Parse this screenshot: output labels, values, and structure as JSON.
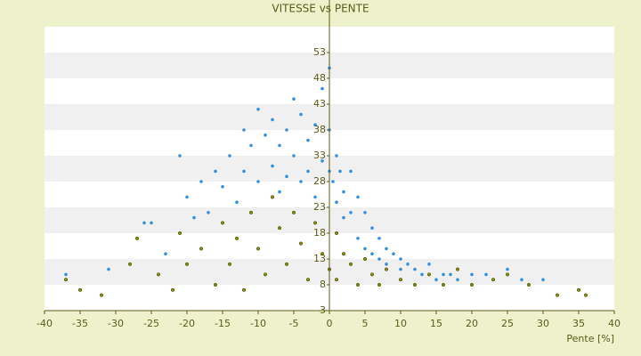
{
  "chart_data": {
    "type": "scatter",
    "title": "VITESSE vs PENTE",
    "x_label": "Pente [%]",
    "xlim": [
      -40,
      40
    ],
    "xticks": [
      -40,
      -35,
      -30,
      -25,
      -20,
      -15,
      -10,
      -5,
      0,
      5,
      10,
      15,
      20,
      25,
      30,
      35,
      40
    ],
    "ylim": [
      3,
      58
    ],
    "yticks": [
      3,
      8,
      13,
      18,
      23,
      28,
      33,
      38,
      43,
      48,
      53
    ],
    "grid": "bands",
    "series": [
      {
        "color": "#8a8a12",
        "x": [
          -37,
          -35,
          -32,
          -28,
          -27,
          -24,
          -22,
          -21,
          -20,
          -18,
          -16,
          -15,
          -14,
          -13,
          -12,
          -11,
          -10,
          -9,
          -8,
          -7,
          -6,
          -5,
          -4,
          -3,
          -2,
          -1,
          0,
          1,
          1,
          2,
          3,
          4,
          5,
          6,
          7,
          8,
          10,
          12,
          14,
          16,
          18,
          20,
          23,
          25,
          28,
          32,
          35,
          36
        ],
        "values": [
          9,
          7,
          6,
          12,
          17,
          10,
          7,
          18,
          12,
          15,
          8,
          20,
          12,
          17,
          7,
          22,
          15,
          10,
          25,
          19,
          12,
          22,
          16,
          9,
          20,
          14,
          11,
          18,
          9,
          14,
          12,
          8,
          13,
          10,
          8,
          11,
          9,
          8,
          10,
          8,
          11,
          8,
          9,
          10,
          8,
          6,
          7,
          6
        ]
      },
      {
        "color": "#3a8fd9",
        "x": [
          -37,
          -31,
          -26,
          -25,
          -23,
          -21,
          -20,
          -19,
          -18,
          -17,
          -16,
          -15,
          -14,
          -13,
          -12,
          -12,
          -11,
          -10,
          -10,
          -9,
          -8,
          -8,
          -7,
          -7,
          -6,
          -6,
          -5,
          -5,
          -4,
          -4,
          -3,
          -3,
          -2,
          -2,
          -1,
          -1,
          0,
          0,
          0,
          0.5,
          1,
          1,
          1.5,
          2,
          2,
          3,
          3,
          4,
          4,
          5,
          5,
          6,
          6,
          7,
          7,
          8,
          8,
          9,
          10,
          10,
          11,
          12,
          13,
          14,
          15,
          16,
          17,
          18,
          20,
          22,
          25,
          27,
          30
        ],
        "values": [
          10,
          11,
          20,
          20,
          14,
          33,
          25,
          21,
          28,
          22,
          30,
          27,
          33,
          24,
          38,
          30,
          35,
          42,
          28,
          37,
          40,
          31,
          35,
          26,
          38,
          29,
          44,
          33,
          41,
          28,
          36,
          30,
          39,
          25,
          46,
          32,
          50,
          38,
          30,
          28,
          33,
          24,
          30,
          26,
          21,
          30,
          22,
          25,
          17,
          22,
          15,
          19,
          14,
          17,
          13,
          15,
          12,
          14,
          13,
          11,
          12,
          11,
          10,
          12,
          9,
          10,
          10,
          9,
          10,
          10,
          11,
          9,
          9
        ]
      }
    ]
  }
}
